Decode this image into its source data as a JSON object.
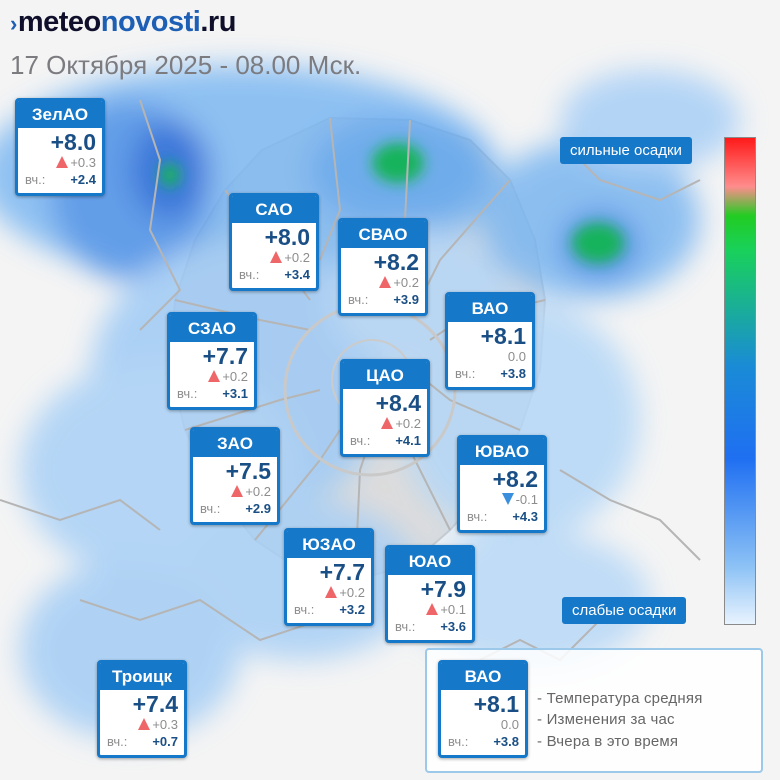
{
  "header": {
    "logo_prefix": "meteo",
    "logo_highlight": "novosti",
    "logo_suffix": ".ru",
    "dateline": "17 Октября 2025 - 08.00 Мск."
  },
  "scale": {
    "top_label": "сильные осадки",
    "bottom_label": "слабые осадки",
    "colors": [
      "#ff1a1a",
      "#ff8c8c",
      "#22cc22",
      "#1a8bd6",
      "#1f6ff2",
      "#8bc1f5",
      "#e8f3fe"
    ]
  },
  "districts": [
    {
      "name": "ЗелАО",
      "temp": "+8.0",
      "trend": "up",
      "change": "+0.3",
      "yest_label": "вч.:",
      "yest": "+2.4"
    },
    {
      "name": "САО",
      "temp": "+8.0",
      "trend": "up",
      "change": "+0.2",
      "yest_label": "вч.:",
      "yest": "+3.4"
    },
    {
      "name": "СВАО",
      "temp": "+8.2",
      "trend": "up",
      "change": "+0.2",
      "yest_label": "вч.:",
      "yest": "+3.9"
    },
    {
      "name": "ВАО",
      "temp": "+8.1",
      "trend": "none",
      "change": "0.0",
      "yest_label": "вч.:",
      "yest": "+3.8"
    },
    {
      "name": "СЗАО",
      "temp": "+7.7",
      "trend": "up",
      "change": "+0.2",
      "yest_label": "вч.:",
      "yest": "+3.1"
    },
    {
      "name": "ЦАО",
      "temp": "+8.4",
      "trend": "up",
      "change": "+0.2",
      "yest_label": "вч.:",
      "yest": "+4.1"
    },
    {
      "name": "ЗАО",
      "temp": "+7.5",
      "trend": "up",
      "change": "+0.2",
      "yest_label": "вч.:",
      "yest": "+2.9"
    },
    {
      "name": "ЮВАО",
      "temp": "+8.2",
      "trend": "down",
      "change": "-0.1",
      "yest_label": "вч.:",
      "yest": "+4.3"
    },
    {
      "name": "ЮЗАО",
      "temp": "+7.7",
      "trend": "up",
      "change": "+0.2",
      "yest_label": "вч.:",
      "yest": "+3.2"
    },
    {
      "name": "ЮАО",
      "temp": "+7.9",
      "trend": "up",
      "change": "+0.1",
      "yest_label": "вч.:",
      "yest": "+3.6"
    },
    {
      "name": "Троицк",
      "temp": "+7.4",
      "trend": "up",
      "change": "+0.3",
      "yest_label": "вч.:",
      "yest": "+0.7"
    }
  ],
  "legend": {
    "sample": {
      "name": "ВАО",
      "temp": "+8.1",
      "trend": "none",
      "change": "0.0",
      "yest_label": "вч.:",
      "yest": "+3.8"
    },
    "items": [
      "- Температура средняя",
      "- Изменения за час",
      "- Вчера в это время"
    ]
  }
}
